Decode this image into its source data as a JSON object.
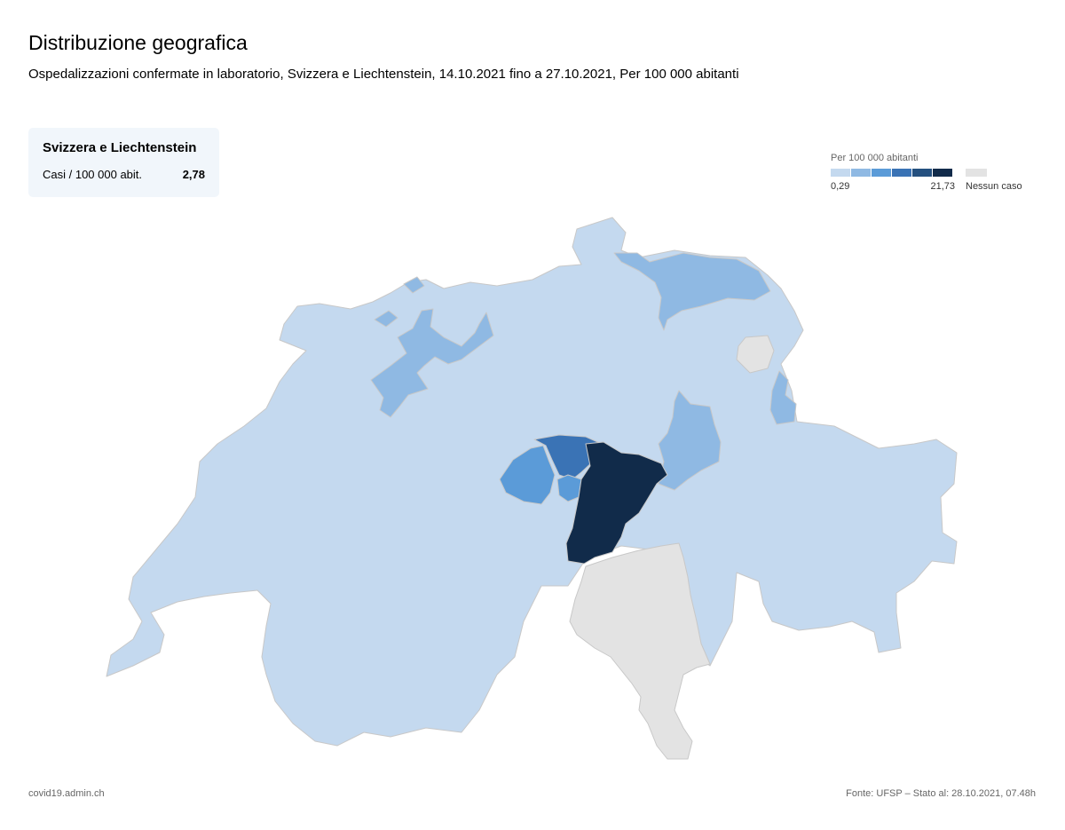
{
  "header": {
    "title": "Distribuzione geografica",
    "subtitle": "Ospedalizzazioni confermate in laboratorio, Svizzera e Liechtenstein, 14.10.2021 fino a 27.10.2021, Per 100 000 abitanti"
  },
  "summary": {
    "title": "Svizzera e Liechtenstein",
    "label": "Casi / 100 000 abit.",
    "value": "2,78"
  },
  "legend": {
    "title": "Per 100 000 abitanti",
    "min_label": "0,29",
    "max_label": "21,73",
    "no_case_label": "Nessun caso",
    "scale_colors": [
      "#c4d9ef",
      "#8fb9e3",
      "#5b9bd8",
      "#3a73b5",
      "#24507f",
      "#112b4a"
    ],
    "no_case_color": "#e3e3e3"
  },
  "map": {
    "colors": {
      "level1": "#c4d9ef",
      "level2": "#8fb9e3",
      "level3": "#5b9bd8",
      "level4": "#3a73b5",
      "level6": "#112b4a",
      "no_case": "#e3e3e3",
      "border": "#c8c8c8"
    }
  },
  "footer": {
    "source_site": "covid19.admin.ch",
    "credit": "Fonte: UFSP – Stato al: 28.10.2021, 07.48h"
  }
}
